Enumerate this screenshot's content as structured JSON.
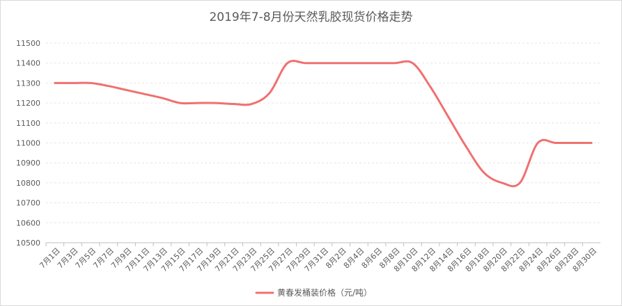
{
  "chart_data": {
    "type": "line",
    "title": "2019年7-8月份天然乳胶现货价格走势",
    "xlabel": "",
    "ylabel": "",
    "ylim": [
      10500,
      11500
    ],
    "yticks": [
      10500,
      10600,
      10700,
      10800,
      10900,
      11000,
      11100,
      11200,
      11300,
      11400,
      11500
    ],
    "grid": "y",
    "legend": "bottom",
    "categories": [
      "7月1日",
      "7月3日",
      "7月5日",
      "7月7日",
      "7月9日",
      "7月11日",
      "7月13日",
      "7月15日",
      "7月17日",
      "7月19日",
      "7月21日",
      "7月23日",
      "7月25日",
      "7月27日",
      "7月29日",
      "7月31日",
      "8月2日",
      "8月4日",
      "8月6日",
      "8月8日",
      "8月10日",
      "8月12日",
      "8月14日",
      "8月16日",
      "8月18日",
      "8月20日",
      "8月22日",
      "8月24日",
      "8月26日",
      "8月28日",
      "8月30日"
    ],
    "series": [
      {
        "name": "黄春发桶装价格（元/吨）",
        "color": "#f07070",
        "values": [
          11300,
          11300,
          11300,
          11285,
          11265,
          11245,
          11225,
          11200,
          11200,
          11200,
          11195,
          11195,
          11250,
          11400,
          11400,
          11400,
          11400,
          11400,
          11400,
          11400,
          11400,
          11280,
          11130,
          10980,
          10850,
          10800,
          10800,
          11000,
          11000,
          11000,
          11000
        ]
      }
    ]
  }
}
